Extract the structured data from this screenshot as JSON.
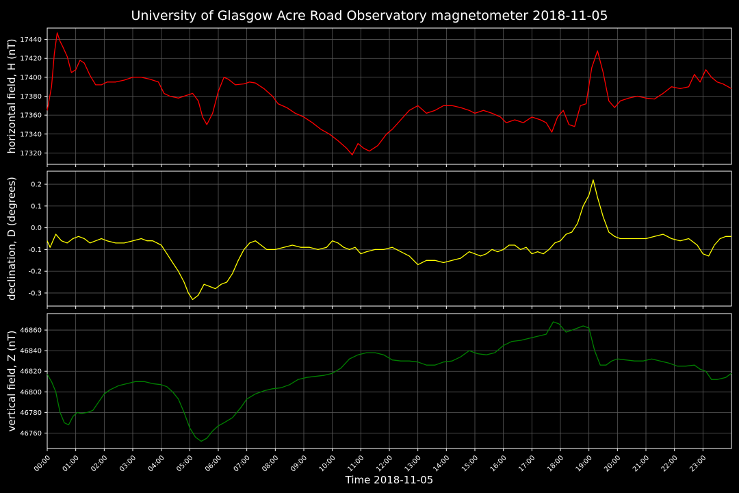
{
  "chart_data": [
    {
      "type": "line",
      "title": "University of Glasgow Acre Road Observatory magnetometer 2018-11-05",
      "ylabel": "horizontal field, H (nT)",
      "ylim": [
        17308,
        17452
      ],
      "yticks": [
        17320,
        17340,
        17360,
        17380,
        17400,
        17420,
        17440
      ],
      "grid": true,
      "color": "#ff0000",
      "series": [
        {
          "x": [
            0,
            0.15,
            0.25,
            0.35,
            0.45,
            0.55,
            0.7,
            0.85,
            1.0,
            1.15,
            1.3,
            1.5,
            1.7,
            1.9,
            2.1,
            2.4,
            2.7,
            3.0,
            3.3,
            3.6,
            3.9,
            4.1,
            4.3,
            4.6,
            4.9,
            5.1,
            5.3,
            5.45,
            5.6,
            5.8,
            6.0,
            6.2,
            6.35,
            6.6,
            6.9,
            7.1,
            7.3,
            7.6,
            7.9,
            8.1,
            8.4,
            8.7,
            9.0,
            9.3,
            9.6,
            9.9,
            10.2,
            10.5,
            10.7,
            10.9,
            11.1,
            11.3,
            11.6,
            11.9,
            12.1,
            12.4,
            12.7,
            13.0,
            13.3,
            13.6,
            13.9,
            14.2,
            14.5,
            14.8,
            15.0,
            15.3,
            15.6,
            15.9,
            16.1,
            16.4,
            16.7,
            17.0,
            17.3,
            17.5,
            17.7,
            17.9,
            18.1,
            18.3,
            18.5,
            18.7,
            18.9,
            19.1,
            19.3,
            19.5,
            19.7,
            19.9,
            20.1,
            20.4,
            20.7,
            21.0,
            21.3,
            21.6,
            21.9,
            22.2,
            22.5,
            22.7,
            22.9,
            23.1,
            23.3,
            23.5,
            23.7,
            24.0
          ],
          "y": [
            17365,
            17390,
            17425,
            17447,
            17438,
            17432,
            17422,
            17405,
            17408,
            17418,
            17415,
            17402,
            17392,
            17392,
            17395,
            17395,
            17397,
            17400,
            17400,
            17398,
            17395,
            17383,
            17380,
            17378,
            17381,
            17383,
            17375,
            17358,
            17350,
            17362,
            17385,
            17400,
            17398,
            17392,
            17393,
            17395,
            17394,
            17388,
            17380,
            17372,
            17368,
            17362,
            17358,
            17352,
            17345,
            17340,
            17333,
            17325,
            17318,
            17330,
            17325,
            17322,
            17328,
            17340,
            17345,
            17355,
            17365,
            17370,
            17362,
            17365,
            17370,
            17370,
            17368,
            17365,
            17362,
            17365,
            17362,
            17358,
            17352,
            17355,
            17352,
            17358,
            17355,
            17352,
            17342,
            17358,
            17365,
            17350,
            17348,
            17370,
            17372,
            17410,
            17428,
            17405,
            17375,
            17368,
            17375,
            17378,
            17380,
            17378,
            17377,
            17383,
            17390,
            17388,
            17390,
            17403,
            17395,
            17408,
            17400,
            17395,
            17393,
            17388
          ]
        }
      ]
    },
    {
      "type": "line",
      "ylabel": "declination, D (degrees)",
      "ylim": [
        -0.36,
        0.26
      ],
      "yticks": [
        -0.3,
        -0.2,
        -0.1,
        0.0,
        0.1,
        0.2
      ],
      "grid": true,
      "color": "#ffff00",
      "series": [
        {
          "x": [
            0,
            0.1,
            0.3,
            0.5,
            0.7,
            0.9,
            1.1,
            1.3,
            1.5,
            1.7,
            1.9,
            2.1,
            2.4,
            2.7,
            3.0,
            3.3,
            3.5,
            3.7,
            4.0,
            4.2,
            4.4,
            4.6,
            4.8,
            4.95,
            5.1,
            5.3,
            5.5,
            5.7,
            5.9,
            6.1,
            6.3,
            6.5,
            6.7,
            6.9,
            7.1,
            7.3,
            7.5,
            7.7,
            8.0,
            8.3,
            8.6,
            8.9,
            9.2,
            9.5,
            9.8,
            10.0,
            10.2,
            10.4,
            10.6,
            10.8,
            11.0,
            11.2,
            11.5,
            11.8,
            12.1,
            12.4,
            12.7,
            13.0,
            13.3,
            13.6,
            13.9,
            14.2,
            14.5,
            14.8,
            15.0,
            15.2,
            15.4,
            15.6,
            15.8,
            16.0,
            16.2,
            16.4,
            16.6,
            16.8,
            17.0,
            17.2,
            17.4,
            17.6,
            17.8,
            18.0,
            18.2,
            18.4,
            18.6,
            18.8,
            19.0,
            19.15,
            19.3,
            19.5,
            19.7,
            19.9,
            20.1,
            20.4,
            20.7,
            21.0,
            21.3,
            21.6,
            21.9,
            22.2,
            22.5,
            22.8,
            23.0,
            23.2,
            23.4,
            23.6,
            23.8,
            24.0
          ],
          "y": [
            -0.06,
            -0.09,
            -0.03,
            -0.06,
            -0.07,
            -0.05,
            -0.04,
            -0.05,
            -0.07,
            -0.06,
            -0.05,
            -0.06,
            -0.07,
            -0.07,
            -0.06,
            -0.05,
            -0.06,
            -0.06,
            -0.08,
            -0.12,
            -0.16,
            -0.2,
            -0.25,
            -0.3,
            -0.33,
            -0.31,
            -0.26,
            -0.27,
            -0.28,
            -0.26,
            -0.25,
            -0.21,
            -0.15,
            -0.1,
            -0.07,
            -0.06,
            -0.08,
            -0.1,
            -0.1,
            -0.09,
            -0.08,
            -0.09,
            -0.09,
            -0.1,
            -0.09,
            -0.06,
            -0.07,
            -0.09,
            -0.1,
            -0.09,
            -0.12,
            -0.11,
            -0.1,
            -0.1,
            -0.09,
            -0.11,
            -0.13,
            -0.17,
            -0.15,
            -0.15,
            -0.16,
            -0.15,
            -0.14,
            -0.11,
            -0.12,
            -0.13,
            -0.12,
            -0.1,
            -0.11,
            -0.1,
            -0.08,
            -0.08,
            -0.1,
            -0.09,
            -0.12,
            -0.11,
            -0.12,
            -0.1,
            -0.07,
            -0.06,
            -0.03,
            -0.02,
            0.02,
            0.1,
            0.15,
            0.22,
            0.14,
            0.05,
            -0.02,
            -0.04,
            -0.05,
            -0.05,
            -0.05,
            -0.05,
            -0.04,
            -0.03,
            -0.05,
            -0.06,
            -0.05,
            -0.08,
            -0.12,
            -0.13,
            -0.08,
            -0.05,
            -0.04,
            -0.04
          ]
        }
      ]
    },
    {
      "type": "line",
      "ylabel": "vertical field, Z (nT)",
      "xlabel": "Time 2018-11-05",
      "ylim": [
        46745,
        46876
      ],
      "yticks": [
        46760,
        46780,
        46800,
        46820,
        46840,
        46860
      ],
      "xticklabels": [
        "00:00",
        "01:00",
        "02:00",
        "03:00",
        "04:00",
        "05:00",
        "06:00",
        "07:00",
        "08:00",
        "09:00",
        "10:00",
        "11:00",
        "12:00",
        "13:00",
        "14:00",
        "15:00",
        "16:00",
        "17:00",
        "18:00",
        "19:00",
        "20:00",
        "21:00",
        "22:00",
        "23:00"
      ],
      "grid": true,
      "color": "#008000",
      "series": [
        {
          "x": [
            0,
            0.15,
            0.3,
            0.45,
            0.6,
            0.75,
            0.9,
            1.05,
            1.2,
            1.4,
            1.6,
            1.8,
            2.0,
            2.2,
            2.5,
            2.8,
            3.1,
            3.4,
            3.7,
            4.0,
            4.2,
            4.4,
            4.6,
            4.8,
            5.0,
            5.2,
            5.4,
            5.6,
            5.8,
            6.0,
            6.2,
            6.5,
            6.8,
            7.0,
            7.3,
            7.6,
            7.9,
            8.2,
            8.5,
            8.8,
            9.1,
            9.4,
            9.7,
            10.0,
            10.3,
            10.6,
            10.9,
            11.2,
            11.5,
            11.8,
            12.1,
            12.4,
            12.7,
            13.0,
            13.3,
            13.6,
            13.9,
            14.2,
            14.5,
            14.8,
            15.1,
            15.4,
            15.7,
            16.0,
            16.3,
            16.6,
            16.9,
            17.2,
            17.5,
            17.75,
            17.95,
            18.2,
            18.4,
            18.6,
            18.8,
            19.0,
            19.2,
            19.4,
            19.6,
            19.8,
            20.0,
            20.3,
            20.6,
            20.9,
            21.2,
            21.5,
            21.8,
            22.1,
            22.4,
            22.7,
            22.9,
            23.1,
            23.3,
            23.5,
            23.8,
            24.0
          ],
          "y": [
            46817,
            46810,
            46800,
            46780,
            46770,
            46768,
            46776,
            46780,
            46779,
            46780,
            46782,
            46790,
            46798,
            46802,
            46806,
            46808,
            46810,
            46810,
            46808,
            46807,
            46805,
            46800,
            46793,
            46780,
            46765,
            46756,
            46752,
            46755,
            46762,
            46767,
            46770,
            46775,
            46785,
            46793,
            46798,
            46801,
            46803,
            46804,
            46807,
            46812,
            46814,
            46815,
            46816,
            46818,
            46823,
            46832,
            46836,
            46838,
            46838,
            46836,
            46831,
            46830,
            46830,
            46829,
            46826,
            46826,
            46829,
            46830,
            46834,
            46840,
            46837,
            46836,
            46838,
            46845,
            46849,
            46850,
            46852,
            46854,
            46856,
            46868,
            46866,
            46858,
            46860,
            46862,
            46864,
            46862,
            46840,
            46826,
            46826,
            46830,
            46832,
            46831,
            46830,
            46830,
            46832,
            46830,
            46828,
            46825,
            46825,
            46826,
            46822,
            46820,
            46812,
            46812,
            46814,
            46818
          ]
        }
      ]
    }
  ]
}
